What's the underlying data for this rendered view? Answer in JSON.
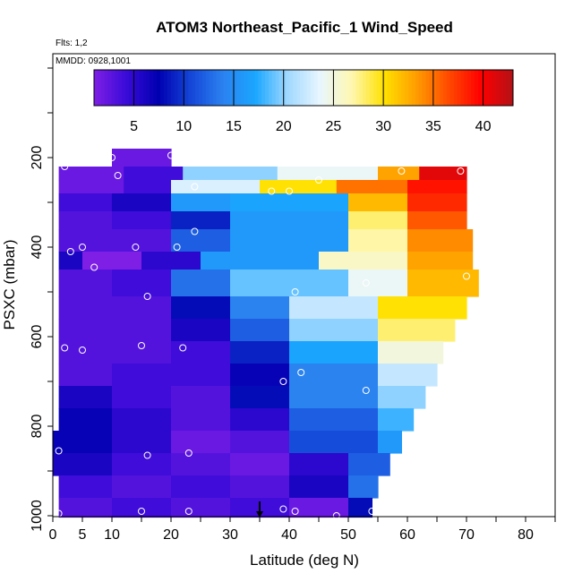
{
  "title": "ATOM3 Northeast_Pacific_1 Wind_Speed",
  "flights_label": "Flts: 1,2",
  "date_label": "MMDD: 0928,1001",
  "chart_data": {
    "type": "heatmap",
    "title": "ATOM3 Northeast_Pacific_1 Wind_Speed",
    "xlabel": "Latitude (deg N)",
    "ylabel": "PSXC (mbar)",
    "xlim": [
      0,
      85
    ],
    "ylim": [
      1000,
      0
    ],
    "xticks": [
      0,
      5,
      10,
      20,
      30,
      40,
      50,
      60,
      70,
      80
    ],
    "yticks": [
      200,
      400,
      600,
      800,
      1000
    ],
    "colorbar": {
      "range": [
        1,
        43
      ],
      "ticks": [
        5,
        10,
        15,
        20,
        25,
        30,
        35,
        40
      ],
      "colors": [
        "#7f1fe6",
        "#3a0bd8",
        "#0000b0",
        "#1446d8",
        "#2b82f0",
        "#1aa6ff",
        "#9fd8ff",
        "#e8f6ff",
        "#fff7b0",
        "#ffe100",
        "#ff9d00",
        "#ff4a00",
        "#ff0000",
        "#b31217"
      ]
    },
    "rows": [
      {
        "p_top": 180,
        "p_bot": 220,
        "segments": [
          [
            10,
            20,
            2
          ]
        ]
      },
      {
        "p_top": 220,
        "p_bot": 250,
        "segments": [
          [
            1,
            12,
            2
          ],
          [
            12,
            22,
            4
          ],
          [
            22,
            38,
            20
          ],
          [
            38,
            55,
            24
          ],
          [
            55,
            62,
            33
          ],
          [
            62,
            70,
            41
          ]
        ]
      },
      {
        "p_top": 250,
        "p_bot": 280,
        "segments": [
          [
            1,
            12,
            2
          ],
          [
            12,
            20,
            4
          ],
          [
            20,
            35,
            23
          ],
          [
            35,
            48,
            30
          ],
          [
            48,
            60,
            35
          ],
          [
            60,
            70,
            39
          ]
        ]
      },
      {
        "p_top": 280,
        "p_bot": 320,
        "segments": [
          [
            1,
            10,
            4
          ],
          [
            10,
            20,
            6
          ],
          [
            20,
            30,
            16
          ],
          [
            30,
            50,
            17
          ],
          [
            50,
            60,
            32
          ],
          [
            60,
            70,
            38
          ]
        ]
      },
      {
        "p_top": 320,
        "p_bot": 360,
        "segments": [
          [
            1,
            10,
            3
          ],
          [
            10,
            20,
            4
          ],
          [
            20,
            30,
            9
          ],
          [
            30,
            50,
            16
          ],
          [
            50,
            60,
            28
          ],
          [
            60,
            70,
            36
          ]
        ]
      },
      {
        "p_top": 360,
        "p_bot": 410,
        "segments": [
          [
            1,
            8,
            3
          ],
          [
            8,
            20,
            3
          ],
          [
            20,
            30,
            12
          ],
          [
            30,
            50,
            16
          ],
          [
            50,
            60,
            27
          ],
          [
            60,
            71,
            34
          ]
        ]
      },
      {
        "p_top": 410,
        "p_bot": 450,
        "segments": [
          [
            1,
            5,
            6
          ],
          [
            5,
            15,
            1
          ],
          [
            15,
            25,
            5
          ],
          [
            25,
            45,
            16
          ],
          [
            45,
            60,
            26
          ],
          [
            60,
            71,
            33
          ]
        ]
      },
      {
        "p_top": 450,
        "p_bot": 510,
        "segments": [
          [
            1,
            10,
            3
          ],
          [
            10,
            20,
            4
          ],
          [
            20,
            30,
            13
          ],
          [
            30,
            50,
            19
          ],
          [
            50,
            60,
            24
          ],
          [
            60,
            72,
            32
          ]
        ]
      },
      {
        "p_top": 510,
        "p_bot": 560,
        "segments": [
          [
            1,
            10,
            3
          ],
          [
            10,
            20,
            3
          ],
          [
            20,
            30,
            8
          ],
          [
            30,
            40,
            14
          ],
          [
            40,
            55,
            22
          ],
          [
            55,
            70,
            30
          ]
        ]
      },
      {
        "p_top": 560,
        "p_bot": 610,
        "segments": [
          [
            1,
            10,
            3
          ],
          [
            10,
            20,
            3
          ],
          [
            20,
            30,
            6
          ],
          [
            30,
            40,
            12
          ],
          [
            40,
            55,
            20
          ],
          [
            55,
            68,
            28
          ]
        ]
      },
      {
        "p_top": 610,
        "p_bot": 660,
        "segments": [
          [
            1,
            10,
            3
          ],
          [
            10,
            20,
            3
          ],
          [
            20,
            30,
            4
          ],
          [
            30,
            40,
            9
          ],
          [
            40,
            55,
            17
          ],
          [
            55,
            66,
            25
          ]
        ]
      },
      {
        "p_top": 660,
        "p_bot": 710,
        "segments": [
          [
            1,
            10,
            3
          ],
          [
            10,
            20,
            4
          ],
          [
            20,
            30,
            4
          ],
          [
            30,
            40,
            7
          ],
          [
            40,
            55,
            14
          ],
          [
            55,
            65,
            22
          ]
        ]
      },
      {
        "p_top": 710,
        "p_bot": 760,
        "segments": [
          [
            1,
            10,
            6
          ],
          [
            10,
            20,
            4
          ],
          [
            20,
            30,
            3
          ],
          [
            30,
            40,
            8
          ],
          [
            40,
            55,
            14
          ],
          [
            55,
            63,
            20
          ]
        ]
      },
      {
        "p_top": 760,
        "p_bot": 810,
        "segments": [
          [
            1,
            10,
            7
          ],
          [
            10,
            20,
            5
          ],
          [
            20,
            30,
            3
          ],
          [
            30,
            40,
            5
          ],
          [
            40,
            55,
            12
          ],
          [
            55,
            61,
            18
          ]
        ]
      },
      {
        "p_top": 810,
        "p_bot": 860,
        "segments": [
          [
            0,
            10,
            7
          ],
          [
            10,
            20,
            5
          ],
          [
            20,
            30,
            2
          ],
          [
            30,
            40,
            3
          ],
          [
            40,
            55,
            11
          ],
          [
            55,
            59,
            16
          ]
        ]
      },
      {
        "p_top": 860,
        "p_bot": 910,
        "segments": [
          [
            0,
            10,
            6
          ],
          [
            10,
            20,
            4
          ],
          [
            20,
            30,
            3
          ],
          [
            30,
            40,
            2
          ],
          [
            40,
            50,
            5
          ],
          [
            50,
            57,
            12
          ]
        ]
      },
      {
        "p_top": 910,
        "p_bot": 960,
        "segments": [
          [
            1,
            10,
            4
          ],
          [
            10,
            20,
            3
          ],
          [
            20,
            30,
            4
          ],
          [
            30,
            40,
            3
          ],
          [
            40,
            50,
            6
          ],
          [
            50,
            55,
            13
          ]
        ]
      },
      {
        "p_top": 960,
        "p_bot": 1005,
        "segments": [
          [
            1,
            10,
            3
          ],
          [
            10,
            20,
            4
          ],
          [
            20,
            30,
            3
          ],
          [
            30,
            40,
            4
          ],
          [
            40,
            50,
            2
          ],
          [
            50,
            54,
            8
          ]
        ]
      }
    ],
    "points": [
      [
        2,
        220
      ],
      [
        10,
        200
      ],
      [
        11,
        240
      ],
      [
        20,
        195
      ],
      [
        24,
        265
      ],
      [
        37,
        275
      ],
      [
        40,
        275
      ],
      [
        45,
        250
      ],
      [
        59,
        230
      ],
      [
        69,
        230
      ],
      [
        24,
        365
      ],
      [
        3,
        410
      ],
      [
        5,
        400
      ],
      [
        14,
        400
      ],
      [
        21,
        400
      ],
      [
        7,
        445
      ],
      [
        16,
        510
      ],
      [
        41,
        500
      ],
      [
        70,
        465
      ],
      [
        53,
        480
      ],
      [
        2,
        625
      ],
      [
        5,
        630
      ],
      [
        15,
        620
      ],
      [
        22,
        625
      ],
      [
        42,
        680
      ],
      [
        39,
        700
      ],
      [
        53,
        720
      ],
      [
        1,
        855
      ],
      [
        16,
        865
      ],
      [
        23,
        860
      ],
      [
        1,
        995
      ],
      [
        15,
        990
      ],
      [
        23,
        990
      ],
      [
        39,
        985
      ],
      [
        41,
        990
      ],
      [
        48,
        1000
      ],
      [
        54,
        990
      ]
    ],
    "arrow_at_x": 35
  }
}
